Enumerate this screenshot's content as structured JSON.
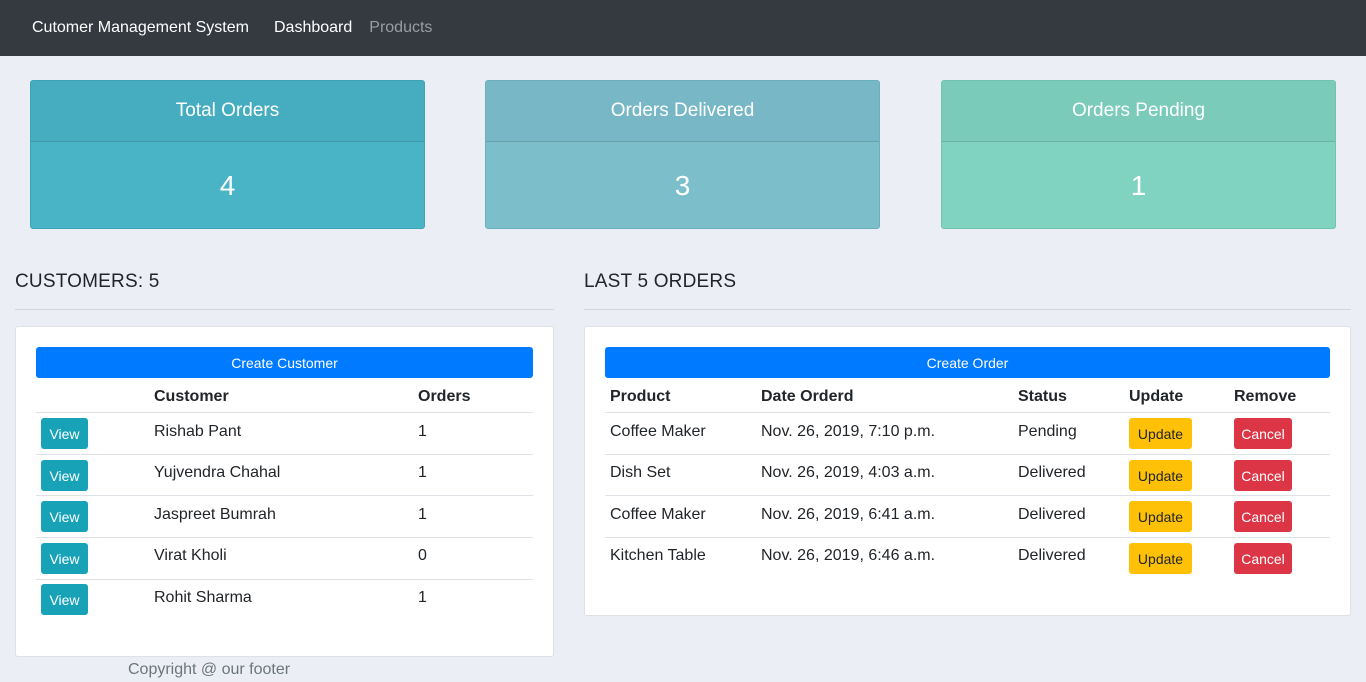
{
  "nav": {
    "brand": "Cutomer Management System",
    "dashboard": "Dashboard",
    "products": "Products"
  },
  "stats": [
    {
      "title": "Total Orders",
      "value": "4"
    },
    {
      "title": "Orders Delivered",
      "value": "3"
    },
    {
      "title": "Orders Pending",
      "value": "1"
    }
  ],
  "customers": {
    "title": "CUSTOMERS: 5",
    "create_label": "Create Customer",
    "headers": [
      "",
      "Customer",
      "Orders"
    ],
    "view_label": "View",
    "rows": [
      {
        "name": "Rishab Pant",
        "orders": "1"
      },
      {
        "name": "Yujvendra Chahal",
        "orders": "1"
      },
      {
        "name": "Jaspreet Bumrah",
        "orders": "1"
      },
      {
        "name": "Virat Kholi",
        "orders": "0"
      },
      {
        "name": "Rohit Sharma",
        "orders": "1"
      }
    ]
  },
  "orders": {
    "title": "LAST 5 ORDERS",
    "create_label": "Create Order",
    "headers": [
      "Product",
      "Date Orderd",
      "Status",
      "Update",
      "Remove"
    ],
    "update_label": "Update",
    "cancel_label": "Cancel",
    "rows": [
      {
        "product": "Coffee Maker",
        "date": "Nov. 26, 2019, 7:10 p.m.",
        "status": "Pending"
      },
      {
        "product": "Dish Set",
        "date": "Nov. 26, 2019, 4:03 a.m.",
        "status": "Delivered"
      },
      {
        "product": "Coffee Maker",
        "date": "Nov. 26, 2019, 6:41 a.m.",
        "status": "Delivered"
      },
      {
        "product": "Kitchen Table",
        "date": "Nov. 26, 2019, 6:46 a.m.",
        "status": "Delivered"
      }
    ]
  },
  "footer": "Copyright @ our footer"
}
